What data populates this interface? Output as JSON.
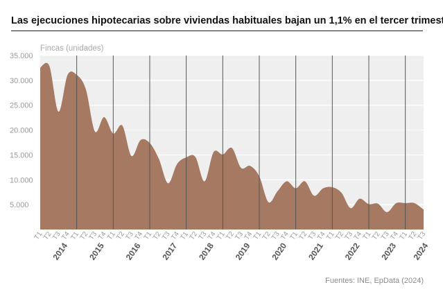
{
  "title": "Las ejecuciones hipotecarias sobre viviendas habituales bajan un 1,1% en el tercer trimestre",
  "source": "Fuentes: INE, EpData (2024)",
  "colors": {
    "area": "#a67a62",
    "plot_bg": "#efefef",
    "grid": "#ffffff",
    "year_line": "#555555"
  },
  "chart_data": {
    "type": "area",
    "title": "Las ejecuciones hipotecarias sobre viviendas habituales bajan un 1,1% en el tercer trimestre",
    "ylabel": "Fincas (unidades)",
    "xlabel": "",
    "ylim": [
      0,
      35000
    ],
    "yticks": [
      {
        "value": 5000,
        "label": "5.000"
      },
      {
        "value": 10000,
        "label": "10.000"
      },
      {
        "value": 15000,
        "label": "15.000"
      },
      {
        "value": 20000,
        "label": "20.000"
      },
      {
        "value": 25000,
        "label": "25.000"
      },
      {
        "value": 30000,
        "label": "30.000"
      },
      {
        "value": 35000,
        "label": "35.000"
      }
    ],
    "grid": true,
    "years": [
      "2014",
      "2015",
      "2016",
      "2017",
      "2018",
      "2019",
      "2020",
      "2021",
      "2022",
      "2023",
      "2024"
    ],
    "quarters": [
      {
        "q": "T1",
        "v": 32600
      },
      {
        "q": "T2",
        "v": 32900
      },
      {
        "q": "T3",
        "v": 23700
      },
      {
        "q": "T4",
        "v": 31100
      },
      {
        "q": "T1",
        "v": 31100
      },
      {
        "q": "T2",
        "v": 28200
      },
      {
        "q": "T3",
        "v": 19700
      },
      {
        "q": "T4",
        "v": 22600
      },
      {
        "q": "T1",
        "v": 19300
      },
      {
        "q": "T2",
        "v": 20900
      },
      {
        "q": "T3",
        "v": 14800
      },
      {
        "q": "T4",
        "v": 18000
      },
      {
        "q": "T1",
        "v": 17400
      },
      {
        "q": "T2",
        "v": 14200
      },
      {
        "q": "T3",
        "v": 9300
      },
      {
        "q": "T4",
        "v": 13200
      },
      {
        "q": "T1",
        "v": 14500
      },
      {
        "q": "T2",
        "v": 14600
      },
      {
        "q": "T3",
        "v": 9700
      },
      {
        "q": "T4",
        "v": 15600
      },
      {
        "q": "T1",
        "v": 15100
      },
      {
        "q": "T2",
        "v": 16400
      },
      {
        "q": "T3",
        "v": 12400
      },
      {
        "q": "T4",
        "v": 12800
      },
      {
        "q": "T1",
        "v": 10700
      },
      {
        "q": "T2",
        "v": 5500
      },
      {
        "q": "T3",
        "v": 7700
      },
      {
        "q": "T4",
        "v": 9700
      },
      {
        "q": "T1",
        "v": 8300
      },
      {
        "q": "T2",
        "v": 9700
      },
      {
        "q": "T3",
        "v": 6800
      },
      {
        "q": "T4",
        "v": 8300
      },
      {
        "q": "T1",
        "v": 8500
      },
      {
        "q": "T2",
        "v": 7400
      },
      {
        "q": "T3",
        "v": 4300
      },
      {
        "q": "T4",
        "v": 6200
      },
      {
        "q": "T1",
        "v": 5100
      },
      {
        "q": "T2",
        "v": 5200
      },
      {
        "q": "T3",
        "v": 3500
      },
      {
        "q": "T4",
        "v": 5300
      },
      {
        "q": "T1",
        "v": 5300
      },
      {
        "q": "T2",
        "v": 5300
      },
      {
        "q": "T3",
        "v": 4000
      }
    ]
  }
}
